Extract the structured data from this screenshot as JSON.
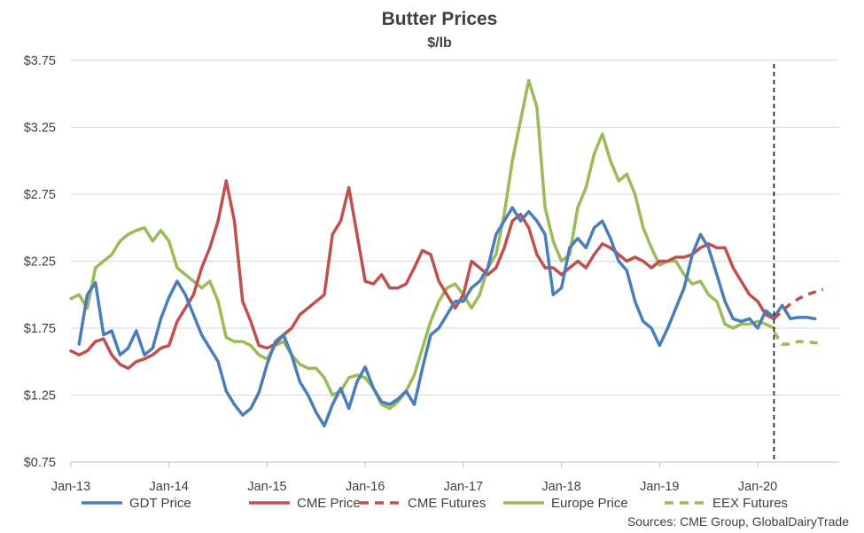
{
  "chart_data": {
    "type": "line",
    "title": "Butter Prices",
    "subtitle": "$/lb",
    "source": "Sources:  CME Group, GlobalDairyTrade",
    "y_ticks": [
      "$0.75",
      "$1.25",
      "$1.75",
      "$2.25",
      "$2.75",
      "$3.25",
      "$3.75"
    ],
    "y_tick_values": [
      0.75,
      1.25,
      1.75,
      2.25,
      2.75,
      3.25,
      3.75
    ],
    "ylim": [
      0.75,
      3.75
    ],
    "x_ticks": [
      "Jan-13",
      "Jan-14",
      "Jan-15",
      "Jan-16",
      "Jan-17",
      "Jan-18",
      "Jan-19",
      "Jan-20"
    ],
    "x_tick_values": [
      "2013-01",
      "2014-01",
      "2015-01",
      "2016-01",
      "2017-01",
      "2018-01",
      "2019-01",
      "2020-01"
    ],
    "xlim": [
      "2013-01",
      "2020-09"
    ],
    "grid": "horizontal",
    "legend_position": "bottom",
    "forecast_divider": "2020-03",
    "colors": {
      "gdt": "#4a7ebb",
      "cme": "#c0504d",
      "europe": "#9bbb59",
      "divider": "#000000"
    },
    "series": [
      {
        "name": "GDT Price",
        "color": "#4a7ebb",
        "style": "solid",
        "points": [
          [
            "2013-02",
            1.63
          ],
          [
            "2013-03",
            2.0
          ],
          [
            "2013-04",
            2.09
          ],
          [
            "2013-05",
            1.7
          ],
          [
            "2013-06",
            1.73
          ],
          [
            "2013-07",
            1.55
          ],
          [
            "2013-08",
            1.6
          ],
          [
            "2013-09",
            1.73
          ],
          [
            "2013-10",
            1.55
          ],
          [
            "2013-11",
            1.6
          ],
          [
            "2013-12",
            1.82
          ],
          [
            "2014-01",
            1.98
          ],
          [
            "2014-02",
            2.1
          ],
          [
            "2014-03",
            2.0
          ],
          [
            "2014-04",
            1.85
          ],
          [
            "2014-05",
            1.7
          ],
          [
            "2014-06",
            1.6
          ],
          [
            "2014-07",
            1.5
          ],
          [
            "2014-08",
            1.28
          ],
          [
            "2014-09",
            1.18
          ],
          [
            "2014-10",
            1.1
          ],
          [
            "2014-11",
            1.15
          ],
          [
            "2014-12",
            1.27
          ],
          [
            "2015-01",
            1.48
          ],
          [
            "2015-02",
            1.65
          ],
          [
            "2015-03",
            1.7
          ],
          [
            "2015-04",
            1.55
          ],
          [
            "2015-05",
            1.35
          ],
          [
            "2015-06",
            1.25
          ],
          [
            "2015-07",
            1.12
          ],
          [
            "2015-08",
            1.02
          ],
          [
            "2015-09",
            1.18
          ],
          [
            "2015-10",
            1.3
          ],
          [
            "2015-11",
            1.15
          ],
          [
            "2015-12",
            1.35
          ],
          [
            "2016-01",
            1.46
          ],
          [
            "2016-02",
            1.3
          ],
          [
            "2016-03",
            1.2
          ],
          [
            "2016-04",
            1.18
          ],
          [
            "2016-05",
            1.22
          ],
          [
            "2016-06",
            1.28
          ],
          [
            "2016-07",
            1.18
          ],
          [
            "2016-08",
            1.45
          ],
          [
            "2016-09",
            1.7
          ],
          [
            "2016-10",
            1.75
          ],
          [
            "2016-11",
            1.85
          ],
          [
            "2016-12",
            1.95
          ],
          [
            "2017-01",
            1.95
          ],
          [
            "2017-02",
            2.05
          ],
          [
            "2017-03",
            2.1
          ],
          [
            "2017-04",
            2.2
          ],
          [
            "2017-05",
            2.45
          ],
          [
            "2017-06",
            2.55
          ],
          [
            "2017-07",
            2.65
          ],
          [
            "2017-08",
            2.55
          ],
          [
            "2017-09",
            2.62
          ],
          [
            "2017-10",
            2.55
          ],
          [
            "2017-11",
            2.45
          ],
          [
            "2017-12",
            2.0
          ],
          [
            "2018-01",
            2.05
          ],
          [
            "2018-02",
            2.35
          ],
          [
            "2018-03",
            2.42
          ],
          [
            "2018-04",
            2.35
          ],
          [
            "2018-05",
            2.5
          ],
          [
            "2018-06",
            2.55
          ],
          [
            "2018-07",
            2.42
          ],
          [
            "2018-08",
            2.25
          ],
          [
            "2018-09",
            2.18
          ],
          [
            "2018-10",
            1.95
          ],
          [
            "2018-11",
            1.8
          ],
          [
            "2018-12",
            1.75
          ],
          [
            "2019-01",
            1.62
          ],
          [
            "2019-02",
            1.75
          ],
          [
            "2019-03",
            1.9
          ],
          [
            "2019-04",
            2.05
          ],
          [
            "2019-05",
            2.3
          ],
          [
            "2019-06",
            2.45
          ],
          [
            "2019-07",
            2.35
          ],
          [
            "2019-08",
            2.15
          ],
          [
            "2019-09",
            1.95
          ],
          [
            "2019-10",
            1.82
          ],
          [
            "2019-11",
            1.8
          ],
          [
            "2019-12",
            1.82
          ],
          [
            "2020-01",
            1.75
          ],
          [
            "2020-02",
            1.88
          ],
          [
            "2020-03",
            1.83
          ],
          [
            "2020-04",
            1.92
          ],
          [
            "2020-05",
            1.82
          ],
          [
            "2020-06",
            1.83
          ],
          [
            "2020-07",
            1.83
          ],
          [
            "2020-08",
            1.82
          ]
        ]
      },
      {
        "name": "CME Price",
        "color": "#c0504d",
        "style": "solid",
        "points": [
          [
            "2013-01",
            1.58
          ],
          [
            "2013-02",
            1.55
          ],
          [
            "2013-03",
            1.58
          ],
          [
            "2013-04",
            1.65
          ],
          [
            "2013-05",
            1.67
          ],
          [
            "2013-06",
            1.55
          ],
          [
            "2013-07",
            1.48
          ],
          [
            "2013-08",
            1.45
          ],
          [
            "2013-09",
            1.5
          ],
          [
            "2013-10",
            1.52
          ],
          [
            "2013-11",
            1.55
          ],
          [
            "2013-12",
            1.6
          ],
          [
            "2014-01",
            1.62
          ],
          [
            "2014-02",
            1.8
          ],
          [
            "2014-03",
            1.9
          ],
          [
            "2014-04",
            2.0
          ],
          [
            "2014-05",
            2.2
          ],
          [
            "2014-06",
            2.35
          ],
          [
            "2014-07",
            2.55
          ],
          [
            "2014-08",
            2.85
          ],
          [
            "2014-09",
            2.55
          ],
          [
            "2014-10",
            1.95
          ],
          [
            "2014-11",
            1.8
          ],
          [
            "2014-12",
            1.62
          ],
          [
            "2015-01",
            1.6
          ],
          [
            "2015-02",
            1.63
          ],
          [
            "2015-03",
            1.7
          ],
          [
            "2015-04",
            1.75
          ],
          [
            "2015-05",
            1.85
          ],
          [
            "2015-06",
            1.9
          ],
          [
            "2015-07",
            1.95
          ],
          [
            "2015-08",
            2.0
          ],
          [
            "2015-09",
            2.45
          ],
          [
            "2015-10",
            2.55
          ],
          [
            "2015-11",
            2.8
          ],
          [
            "2015-12",
            2.45
          ],
          [
            "2016-01",
            2.1
          ],
          [
            "2016-02",
            2.08
          ],
          [
            "2016-03",
            2.15
          ],
          [
            "2016-04",
            2.05
          ],
          [
            "2016-05",
            2.05
          ],
          [
            "2016-06",
            2.08
          ],
          [
            "2016-07",
            2.2
          ],
          [
            "2016-08",
            2.33
          ],
          [
            "2016-09",
            2.3
          ],
          [
            "2016-10",
            2.1
          ],
          [
            "2016-11",
            2.0
          ],
          [
            "2016-12",
            1.9
          ],
          [
            "2017-01",
            2.0
          ],
          [
            "2017-02",
            2.25
          ],
          [
            "2017-03",
            2.2
          ],
          [
            "2017-04",
            2.15
          ],
          [
            "2017-05",
            2.2
          ],
          [
            "2017-06",
            2.35
          ],
          [
            "2017-07",
            2.55
          ],
          [
            "2017-08",
            2.6
          ],
          [
            "2017-09",
            2.5
          ],
          [
            "2017-10",
            2.3
          ],
          [
            "2017-11",
            2.2
          ],
          [
            "2017-12",
            2.2
          ],
          [
            "2018-01",
            2.15
          ],
          [
            "2018-02",
            2.2
          ],
          [
            "2018-03",
            2.25
          ],
          [
            "2018-04",
            2.2
          ],
          [
            "2018-05",
            2.3
          ],
          [
            "2018-06",
            2.38
          ],
          [
            "2018-07",
            2.35
          ],
          [
            "2018-08",
            2.3
          ],
          [
            "2018-09",
            2.25
          ],
          [
            "2018-10",
            2.28
          ],
          [
            "2018-11",
            2.25
          ],
          [
            "2018-12",
            2.2
          ],
          [
            "2019-01",
            2.25
          ],
          [
            "2019-02",
            2.25
          ],
          [
            "2019-03",
            2.28
          ],
          [
            "2019-04",
            2.28
          ],
          [
            "2019-05",
            2.3
          ],
          [
            "2019-06",
            2.35
          ],
          [
            "2019-07",
            2.38
          ],
          [
            "2019-08",
            2.35
          ],
          [
            "2019-09",
            2.35
          ],
          [
            "2019-10",
            2.2
          ],
          [
            "2019-11",
            2.1
          ],
          [
            "2019-12",
            2.0
          ],
          [
            "2020-01",
            1.95
          ],
          [
            "2020-02",
            1.85
          ],
          [
            "2020-03",
            1.82
          ]
        ]
      },
      {
        "name": "CME Futures",
        "color": "#c0504d",
        "style": "dashed",
        "points": [
          [
            "2020-03",
            1.82
          ],
          [
            "2020-04",
            1.88
          ],
          [
            "2020-05",
            1.93
          ],
          [
            "2020-06",
            1.97
          ],
          [
            "2020-07",
            2.0
          ],
          [
            "2020-08",
            2.02
          ],
          [
            "2020-09",
            2.04
          ]
        ]
      },
      {
        "name": "Europe Price",
        "color": "#9bbb59",
        "style": "solid",
        "points": [
          [
            "2013-01",
            1.97
          ],
          [
            "2013-02",
            2.0
          ],
          [
            "2013-03",
            1.9
          ],
          [
            "2013-04",
            2.2
          ],
          [
            "2013-05",
            2.25
          ],
          [
            "2013-06",
            2.3
          ],
          [
            "2013-07",
            2.4
          ],
          [
            "2013-08",
            2.45
          ],
          [
            "2013-09",
            2.48
          ],
          [
            "2013-10",
            2.5
          ],
          [
            "2013-11",
            2.4
          ],
          [
            "2013-12",
            2.48
          ],
          [
            "2014-01",
            2.4
          ],
          [
            "2014-02",
            2.2
          ],
          [
            "2014-03",
            2.15
          ],
          [
            "2014-04",
            2.1
          ],
          [
            "2014-05",
            2.05
          ],
          [
            "2014-06",
            2.1
          ],
          [
            "2014-07",
            1.95
          ],
          [
            "2014-08",
            1.68
          ],
          [
            "2014-09",
            1.65
          ],
          [
            "2014-10",
            1.65
          ],
          [
            "2014-11",
            1.62
          ],
          [
            "2014-12",
            1.55
          ],
          [
            "2015-01",
            1.52
          ],
          [
            "2015-02",
            1.62
          ],
          [
            "2015-03",
            1.65
          ],
          [
            "2015-04",
            1.55
          ],
          [
            "2015-05",
            1.48
          ],
          [
            "2015-06",
            1.45
          ],
          [
            "2015-07",
            1.45
          ],
          [
            "2015-08",
            1.38
          ],
          [
            "2015-09",
            1.25
          ],
          [
            "2015-10",
            1.28
          ],
          [
            "2015-11",
            1.38
          ],
          [
            "2015-12",
            1.4
          ],
          [
            "2016-01",
            1.38
          ],
          [
            "2016-02",
            1.3
          ],
          [
            "2016-03",
            1.18
          ],
          [
            "2016-04",
            1.15
          ],
          [
            "2016-05",
            1.2
          ],
          [
            "2016-06",
            1.28
          ],
          [
            "2016-07",
            1.4
          ],
          [
            "2016-08",
            1.6
          ],
          [
            "2016-09",
            1.8
          ],
          [
            "2016-10",
            1.95
          ],
          [
            "2016-11",
            2.05
          ],
          [
            "2016-12",
            2.08
          ],
          [
            "2017-01",
            2.0
          ],
          [
            "2017-02",
            1.9
          ],
          [
            "2017-03",
            2.0
          ],
          [
            "2017-04",
            2.2
          ],
          [
            "2017-05",
            2.3
          ],
          [
            "2017-06",
            2.6
          ],
          [
            "2017-07",
            3.0
          ],
          [
            "2017-08",
            3.3
          ],
          [
            "2017-09",
            3.6
          ],
          [
            "2017-10",
            3.4
          ],
          [
            "2017-11",
            2.65
          ],
          [
            "2017-12",
            2.4
          ],
          [
            "2018-01",
            2.25
          ],
          [
            "2018-02",
            2.3
          ],
          [
            "2018-03",
            2.65
          ],
          [
            "2018-04",
            2.8
          ],
          [
            "2018-05",
            3.05
          ],
          [
            "2018-06",
            3.2
          ],
          [
            "2018-07",
            3.0
          ],
          [
            "2018-08",
            2.85
          ],
          [
            "2018-09",
            2.9
          ],
          [
            "2018-10",
            2.75
          ],
          [
            "2018-11",
            2.5
          ],
          [
            "2018-12",
            2.35
          ],
          [
            "2019-01",
            2.22
          ],
          [
            "2019-02",
            2.25
          ],
          [
            "2019-03",
            2.25
          ],
          [
            "2019-04",
            2.15
          ],
          [
            "2019-05",
            2.08
          ],
          [
            "2019-06",
            2.1
          ],
          [
            "2019-07",
            2.0
          ],
          [
            "2019-08",
            1.95
          ],
          [
            "2019-09",
            1.78
          ],
          [
            "2019-10",
            1.75
          ],
          [
            "2019-11",
            1.78
          ],
          [
            "2019-12",
            1.78
          ],
          [
            "2020-01",
            1.8
          ],
          [
            "2020-02",
            1.78
          ],
          [
            "2020-03",
            1.75
          ]
        ]
      },
      {
        "name": "EEX Futures",
        "color": "#9bbb59",
        "style": "dashed",
        "points": [
          [
            "2020-03",
            1.72
          ],
          [
            "2020-04",
            1.63
          ],
          [
            "2020-05",
            1.63
          ],
          [
            "2020-06",
            1.65
          ],
          [
            "2020-07",
            1.65
          ],
          [
            "2020-08",
            1.64
          ],
          [
            "2020-09",
            1.64
          ]
        ]
      }
    ]
  }
}
